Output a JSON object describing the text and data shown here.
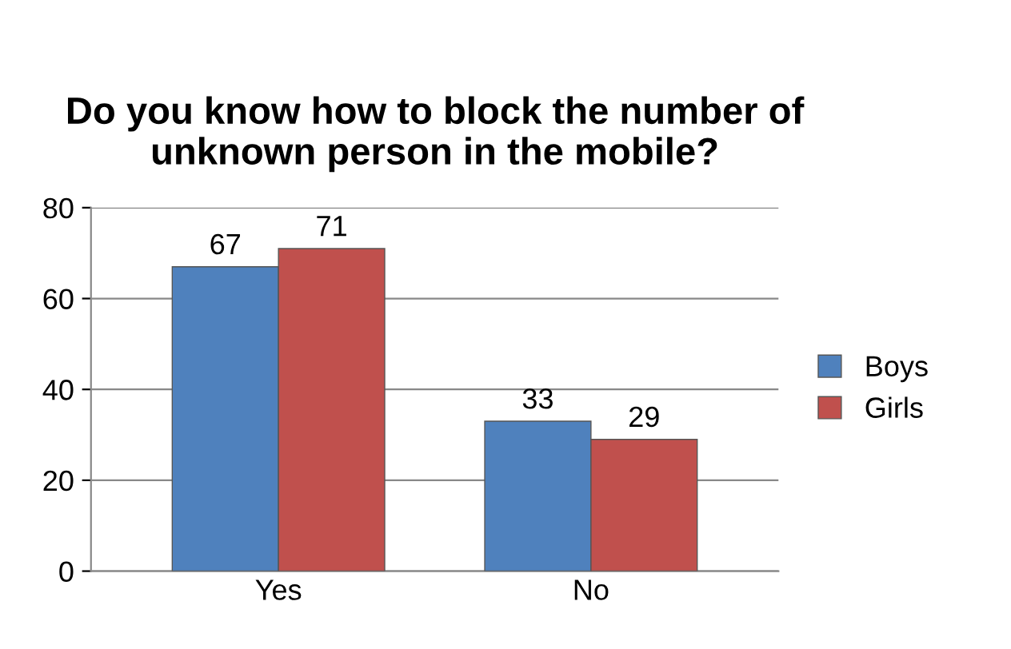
{
  "chart_data": {
    "type": "bar",
    "title": "Do you know how to block the number of unknown person in the mobile?",
    "categories": [
      "Yes",
      "No"
    ],
    "series": [
      {
        "name": "Boys",
        "color": "#4f81bd",
        "values": [
          67,
          33
        ]
      },
      {
        "name": "Girls",
        "color": "#c0504d",
        "values": [
          71,
          29
        ]
      }
    ],
    "ylim": [
      0,
      80
    ],
    "yticks": [
      0,
      20,
      40,
      60,
      80
    ],
    "grid": "y",
    "legend": "right",
    "data_labels": true
  }
}
